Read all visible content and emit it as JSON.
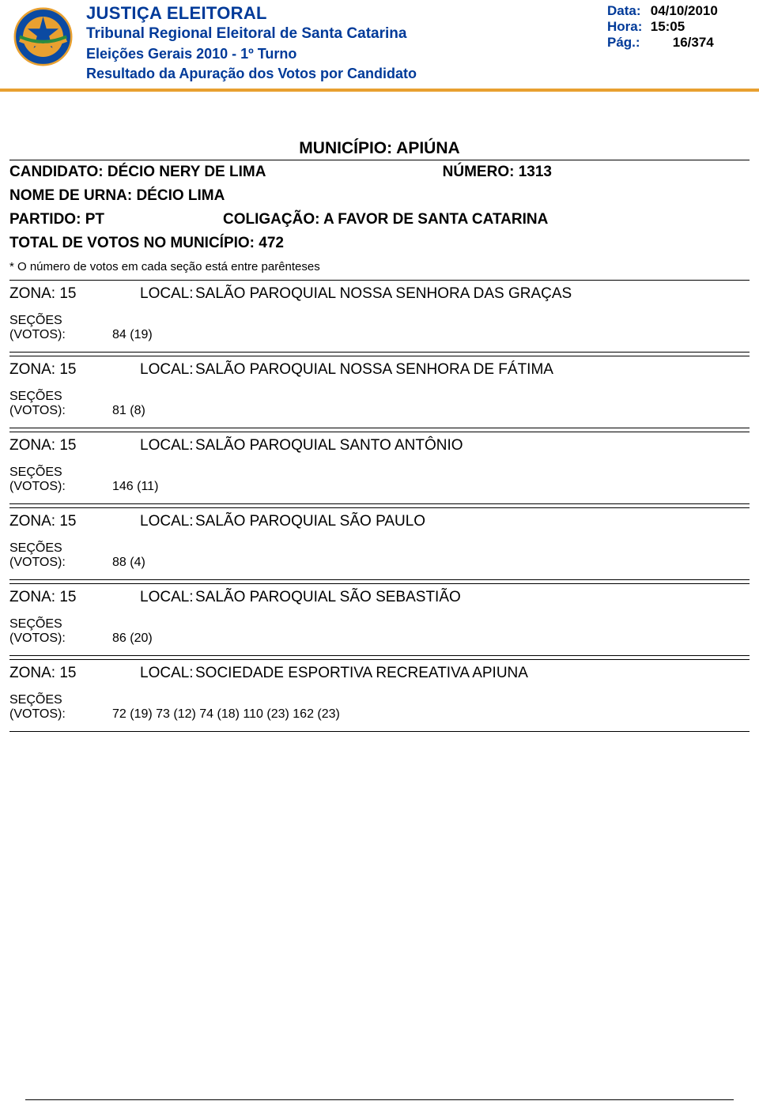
{
  "header": {
    "title": "JUSTIÇA ELEITORAL",
    "subtitle": "Tribunal Regional Eleitoral de Santa Catarina",
    "election": "Eleições Gerais 2010 - 1º Turno",
    "report": "Resultado da Apuração dos Votos por Candidato",
    "date_label": "Data:",
    "date_value": "04/10/2010",
    "time_label": "Hora:",
    "time_value": "15:05",
    "page_label": "Pág.:",
    "page_value": "16/374",
    "accent_color": "#e8a030",
    "text_color": "#003a99"
  },
  "municipio": {
    "label": "MUNICÍPIO: APIÚNA"
  },
  "candidate": {
    "candidato_label": "CANDIDATO:",
    "candidato_value": "DÉCIO NERY DE LIMA",
    "numero_label": "NÚMERO:",
    "numero_value": "1313",
    "urna_label": "NOME DE URNA:",
    "urna_value": "DÉCIO LIMA",
    "partido_label": "PARTIDO:",
    "partido_value": "PT",
    "coligacao_label": "COLIGAÇÃO:",
    "coligacao_value": "A FAVOR DE SANTA CATARINA",
    "total_label": "TOTAL DE VOTOS NO MUNICÍPIO:",
    "total_value": "472",
    "footnote": "* O número de votos  em cada seção está entre parênteses"
  },
  "labels": {
    "zona": "ZONA:",
    "local": "LOCAL:",
    "secoes": "SEÇÕES (VOTOS):"
  },
  "zones": [
    {
      "zona": "15",
      "local": "SALÃO PAROQUIAL NOSSA SENHORA DAS GRAÇAS",
      "secoes": "84 (19)"
    },
    {
      "zona": "15",
      "local": "SALÃO PAROQUIAL NOSSA SENHORA DE FÁTIMA",
      "secoes": "81 (8)"
    },
    {
      "zona": "15",
      "local": "SALÃO PAROQUIAL SANTO ANTÔNIO",
      "secoes": "146 (11)"
    },
    {
      "zona": "15",
      "local": "SALÃO PAROQUIAL SÃO PAULO",
      "secoes": "88 (4)"
    },
    {
      "zona": "15",
      "local": "SALÃO PAROQUIAL SÃO SEBASTIÃO",
      "secoes": "86 (20)"
    },
    {
      "zona": "15",
      "local": "SOCIEDADE ESPORTIVA RECREATIVA APIUNA",
      "secoes": "72 (19) 73 (12) 74 (18) 110 (23) 162 (23)"
    }
  ]
}
